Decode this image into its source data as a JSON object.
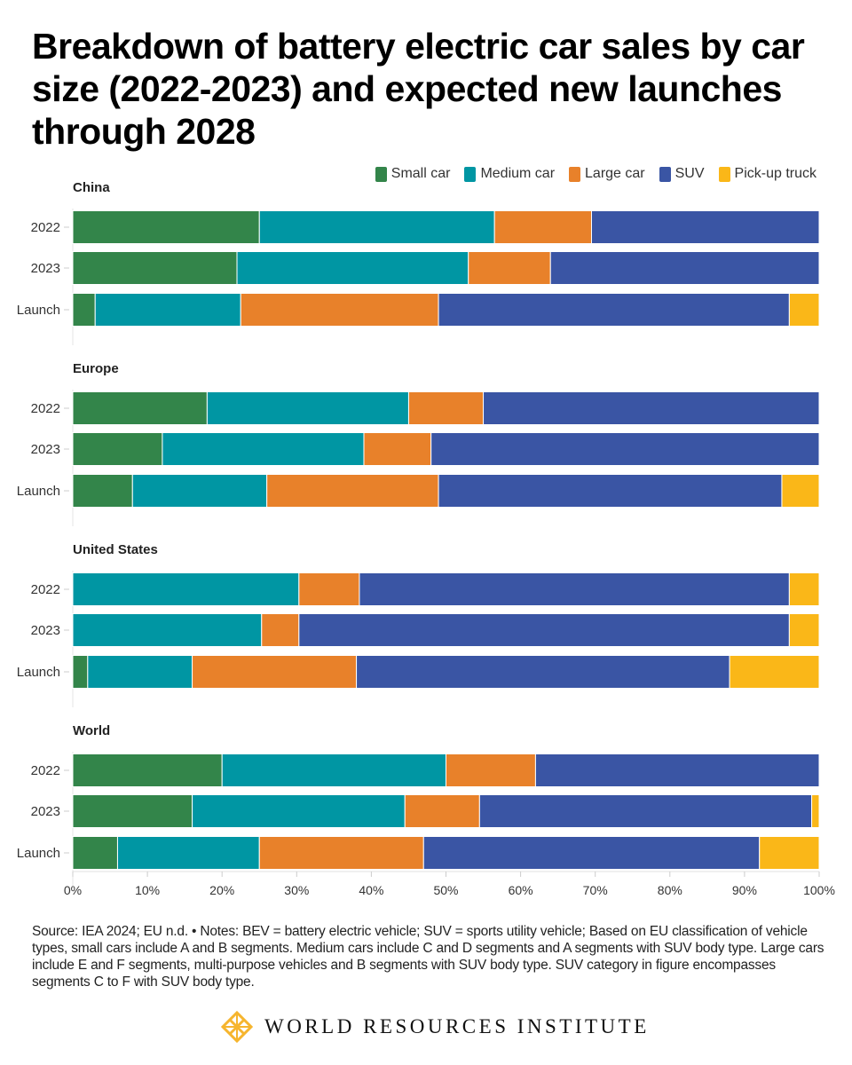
{
  "title": "Breakdown of battery electric car sales by car size (2022-2023) and expected new launches through 2028",
  "footnote": "Source: IEA 2024; EU n.d. • Notes: BEV = battery electric vehicle; SUV = sports utility vehicle; Based on EU classification of vehicle types, small cars include A and B segments. Medium cars include C and D segments and A segments with SUV body type. Large cars include E and F segments, multi-purpose vehicles and B segments with SUV body type. SUV category in figure encompasses segments C to F with SUV body type.",
  "brand": {
    "name": "WORLD RESOURCES INSTITUTE",
    "logo_icon": "wri-lattice-logo-icon",
    "logo_color": "#F6B52E"
  },
  "chart_data": {
    "type": "bar",
    "orientation": "horizontal",
    "stacked": true,
    "normalized": true,
    "title": "Breakdown of battery electric car sales by car size (2022-2023) and expected new launches through 2028",
    "xlabel": "",
    "ylabel": "",
    "xlim": [
      0,
      100
    ],
    "x_ticks": [
      "0%",
      "10%",
      "20%",
      "30%",
      "40%",
      "50%",
      "60%",
      "70%",
      "80%",
      "90%",
      "100%"
    ],
    "legend_position": "top-right",
    "grid": false,
    "series_names": [
      "Small car",
      "Medium car",
      "Large car",
      "SUV",
      "Pick-up truck"
    ],
    "series_colors": [
      "#33854A",
      "#0096A3",
      "#E8812A",
      "#3A55A4",
      "#FAB718"
    ],
    "categories": [
      "2022",
      "2023",
      "Launch"
    ],
    "panels": [
      {
        "name": "China",
        "rows": [
          {
            "label": "2022",
            "values": [
              25,
              31.5,
              13,
              30.5,
              0
            ]
          },
          {
            "label": "2023",
            "values": [
              22,
              31,
              11,
              36,
              0
            ]
          },
          {
            "label": "Launch",
            "values": [
              3,
              19.5,
              26.5,
              47,
              4
            ]
          }
        ]
      },
      {
        "name": "Europe",
        "rows": [
          {
            "label": "2022",
            "values": [
              18,
              27,
              10,
              45,
              0
            ]
          },
          {
            "label": "2023",
            "values": [
              12,
              27,
              9,
              52,
              0
            ]
          },
          {
            "label": "Launch",
            "values": [
              8,
              18,
              23,
              46,
              5
            ]
          }
        ]
      },
      {
        "name": "United States",
        "rows": [
          {
            "label": "2022",
            "values": [
              0,
              30.3,
              8.1,
              57.6,
              4
            ]
          },
          {
            "label": "2023",
            "values": [
              0,
              25.3,
              5,
              65.7,
              4
            ]
          },
          {
            "label": "Launch",
            "values": [
              2,
              14,
              22,
              50,
              12
            ]
          }
        ]
      },
      {
        "name": "World",
        "rows": [
          {
            "label": "2022",
            "values": [
              20,
              30,
              12,
              38,
              0
            ]
          },
          {
            "label": "2023",
            "values": [
              16,
              28.5,
              10,
              44.5,
              1
            ]
          },
          {
            "label": "Launch",
            "values": [
              6,
              19,
              22,
              45,
              8
            ]
          }
        ]
      }
    ]
  }
}
